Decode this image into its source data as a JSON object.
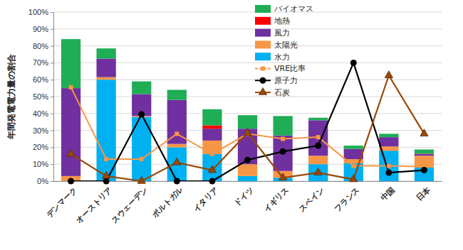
{
  "chart_data": {
    "type": "bar",
    "stacked": true,
    "ylabel": "年間発電電力量の割合",
    "categories": [
      "デンマーク",
      "オーストリア",
      "スウェーデン",
      "ポルトガル",
      "イタリア",
      "ドイツ",
      "イギリス",
      "スペイン",
      "フランス",
      "中国",
      "日本"
    ],
    "ylim": [
      0,
      100
    ],
    "yticks": [
      {
        "value": 0,
        "label": "0%"
      },
      {
        "value": 10,
        "label": "10%"
      },
      {
        "value": 20,
        "label": "20%"
      },
      {
        "value": 30,
        "label": "30%"
      },
      {
        "value": 40,
        "label": "40%"
      },
      {
        "value": 50,
        "label": "50%"
      },
      {
        "value": 60,
        "label": "60%"
      },
      {
        "value": 70,
        "label": "70%"
      },
      {
        "value": 80,
        "label": "80%"
      },
      {
        "value": 90,
        "label": "90%"
      },
      {
        "value": 100,
        "label": "100%"
      }
    ],
    "grid": true,
    "legend": "top-right",
    "series": [
      {
        "name": "バイオマス",
        "type": "bar",
        "color": "#1fae56",
        "values": [
          29,
          6,
          7.5,
          6,
          9.5,
          8,
          11.5,
          1.5,
          2,
          2,
          2.5
        ]
      },
      {
        "name": "地熱",
        "type": "bar",
        "color": "#ff0000",
        "values": [
          0,
          0,
          0,
          0,
          2,
          0,
          0,
          0,
          0,
          0,
          0.2
        ]
      },
      {
        "name": "風力",
        "type": "bar",
        "color": "#7030a0",
        "values": [
          52,
          11,
          13,
          26,
          7,
          21,
          21,
          21,
          6,
          5.5,
          1
        ]
      },
      {
        "name": "太陽光",
        "type": "bar",
        "color": "#f79646",
        "values": [
          3,
          1.5,
          0.5,
          2,
          8,
          7,
          4,
          5,
          2.5,
          2.5,
          7
        ]
      },
      {
        "name": "水力",
        "type": "bar",
        "color": "#00b0f0",
        "values": [
          0,
          60,
          38,
          20,
          16,
          3,
          2,
          10,
          10.5,
          18,
          8
        ]
      },
      {
        "name": "VRE比率",
        "type": "line",
        "color": "#f79646",
        "marker": "square",
        "line_style": "solid",
        "values": [
          55.5,
          13,
          13,
          28,
          16,
          28,
          25,
          26,
          9,
          9,
          8.5
        ]
      },
      {
        "name": "原子力",
        "type": "line",
        "color": "#000000",
        "marker": "circle",
        "line_style": "solid",
        "values": [
          0,
          0,
          39.5,
          0,
          0,
          12.5,
          17.5,
          21,
          70,
          5,
          6.5
        ]
      },
      {
        "name": "石炭",
        "type": "line",
        "color": "#984807",
        "marker": "triangle",
        "line_style": "solid",
        "values": [
          16,
          3,
          0,
          11,
          6.5,
          28.5,
          2,
          5,
          1,
          62.5,
          28
        ]
      }
    ]
  }
}
